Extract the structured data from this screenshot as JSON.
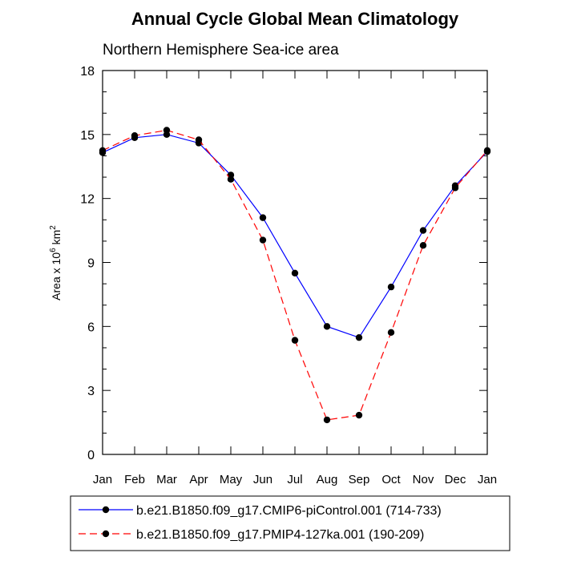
{
  "chart_data": {
    "type": "line",
    "title": "Annual Cycle Global Mean Climatology",
    "subtitle": "Northern Hemisphere Sea-ice area",
    "ylabel_prefix": "Area x 10",
    "ylabel_exp1": "6",
    "ylabel_unit": " km",
    "ylabel_exp2": "2",
    "ylim": [
      0,
      18
    ],
    "yticks": [
      "0",
      "3",
      "6",
      "9",
      "12",
      "15",
      "18"
    ],
    "categories": [
      "Jan",
      "Feb",
      "Mar",
      "Apr",
      "May",
      "Jun",
      "Jul",
      "Aug",
      "Sep",
      "Oct",
      "Nov",
      "Dec",
      "Jan"
    ],
    "series": [
      {
        "name": "b.e21.B1850.f09_g17.CMIP6-piControl.001 (714-733)",
        "color": "#0000ff",
        "dash": "solid",
        "values": [
          14.15,
          14.85,
          15.0,
          14.6,
          13.1,
          11.1,
          8.5,
          6.0,
          5.48,
          7.85,
          10.5,
          12.6,
          14.2
        ]
      },
      {
        "name": "b.e21.B1850.f09_g17.PMIP4-127ka.001 (190-209)",
        "color": "#ff0000",
        "dash": "dashed",
        "values": [
          14.25,
          14.95,
          15.2,
          14.75,
          12.9,
          10.05,
          5.35,
          1.62,
          1.84,
          5.72,
          9.8,
          12.5,
          14.25
        ]
      }
    ],
    "grid": false,
    "legend_position": "bottom"
  }
}
